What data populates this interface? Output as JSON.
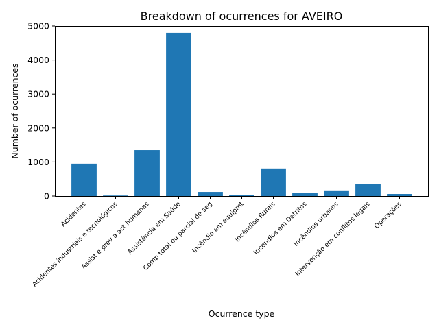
{
  "chart_data": {
    "type": "bar",
    "title": "Breakdown of ocurrences for AVEIRO",
    "xlabel": "Ocurrence type",
    "ylabel": "Number of ocurrences",
    "categories": [
      "Acidentes",
      "Acidentes industriais e tecnológicos",
      "Assist e prev a act humanas",
      "Assistência em Saúde",
      "Comp total ou parcial de seg",
      "Incêndio em equipmt",
      "Incêndios Rurais",
      "Incêndios em Detritos",
      "Incêndios urbanos",
      "Intervenção em conflitos legais",
      "Operações"
    ],
    "values": [
      950,
      15,
      1350,
      4800,
      120,
      40,
      810,
      85,
      165,
      360,
      60
    ],
    "ylim": [
      0,
      5000
    ],
    "yticks": [
      0,
      1000,
      2000,
      3000,
      4000,
      5000
    ],
    "grid": false,
    "bar_color": "#1f77b4"
  }
}
